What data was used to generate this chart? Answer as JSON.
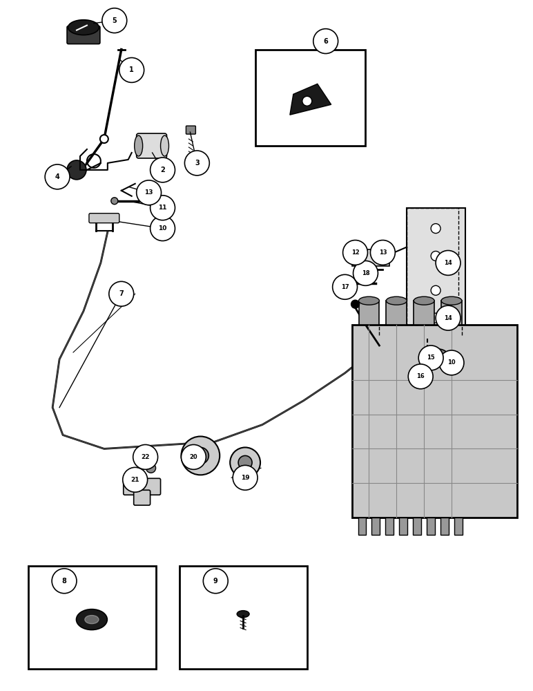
{
  "bg_color": "#ffffff",
  "fig_width": 7.72,
  "fig_height": 10.0,
  "dpi": 100
}
